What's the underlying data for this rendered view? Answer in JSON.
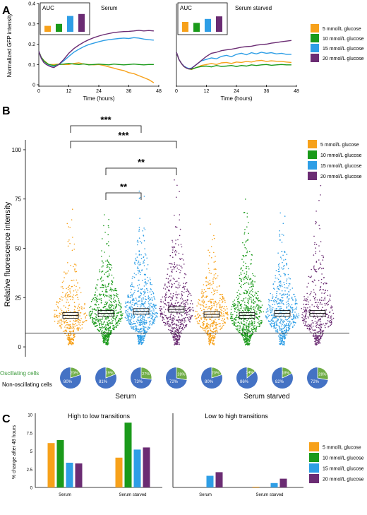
{
  "colors": {
    "glc5": "#F7A11A",
    "glc10": "#1A9A1A",
    "glc15": "#2E9EE6",
    "glc20": "#6B2C73",
    "pie_blue": "#4472C4",
    "pie_green": "#70AD47",
    "oscillating_text": "#3C9A3C"
  },
  "legend": [
    "5 mmol/L glucose",
    "10 mmol/L glucose",
    "15 mmol/L glucose",
    "20 mmol/L glucose"
  ],
  "panel_letters": [
    "A",
    "B",
    "C"
  ],
  "chart_data": [
    {
      "type": "line",
      "panel": "A",
      "title": "Serum",
      "inset_label": "AUC",
      "xlabel": "Time (hours)",
      "ylabel": "Normalized GFP intensity",
      "xlim": [
        0,
        48
      ],
      "ylim": [
        0,
        0.4
      ],
      "xticks": [
        "0",
        "12",
        "24",
        "36",
        "48"
      ],
      "yticks": [
        "0",
        "0.1",
        "0.2",
        "0.3",
        "0.4"
      ],
      "inset_auc": [
        0.3,
        0.4,
        0.8,
        0.9
      ],
      "x": [
        0,
        1,
        2,
        3,
        4,
        5,
        6,
        8,
        10,
        12,
        14,
        16,
        18,
        20,
        22,
        24,
        26,
        28,
        30,
        32,
        34,
        36,
        38,
        40,
        42,
        44,
        46
      ],
      "series": [
        {
          "name": "5 mmol/L glucose",
          "values": [
            0.165,
            0.135,
            0.12,
            0.11,
            0.1,
            0.1,
            0.1,
            0.102,
            0.1,
            0.1,
            0.105,
            0.108,
            0.102,
            0.1,
            0.098,
            0.1,
            0.095,
            0.088,
            0.082,
            0.075,
            0.07,
            0.06,
            0.055,
            0.045,
            0.035,
            0.025,
            0.01
          ]
        },
        {
          "name": "10 mmol/L glucose",
          "values": [
            0.165,
            0.135,
            0.118,
            0.108,
            0.1,
            0.097,
            0.095,
            0.1,
            0.102,
            0.105,
            0.102,
            0.1,
            0.103,
            0.098,
            0.1,
            0.102,
            0.1,
            0.098,
            0.102,
            0.1,
            0.098,
            0.1,
            0.102,
            0.1,
            0.098,
            0.1,
            0.1
          ]
        },
        {
          "name": "15 mmol/L glucose",
          "values": [
            0.165,
            0.13,
            0.11,
            0.1,
            0.095,
            0.09,
            0.088,
            0.1,
            0.118,
            0.14,
            0.16,
            0.175,
            0.188,
            0.198,
            0.205,
            0.212,
            0.218,
            0.222,
            0.225,
            0.228,
            0.23,
            0.228,
            0.232,
            0.23,
            0.225,
            0.222,
            0.22
          ]
        },
        {
          "name": "20 mmol/L glucose",
          "values": [
            0.165,
            0.13,
            0.11,
            0.1,
            0.093,
            0.088,
            0.085,
            0.1,
            0.125,
            0.155,
            0.178,
            0.195,
            0.21,
            0.222,
            0.232,
            0.24,
            0.247,
            0.252,
            0.257,
            0.26,
            0.262,
            0.263,
            0.265,
            0.268,
            0.265,
            0.267,
            0.265
          ]
        }
      ]
    },
    {
      "type": "line",
      "panel": "A",
      "title": "Serum starved",
      "inset_label": "AUC",
      "xlabel": "Time (hours)",
      "xlim": [
        0,
        48
      ],
      "ylim": [
        0,
        0.4
      ],
      "xticks": [
        "0",
        "12",
        "24",
        "36",
        "48"
      ],
      "inset_auc": [
        0.5,
        0.45,
        0.65,
        0.78
      ],
      "x": [
        0,
        1,
        2,
        3,
        4,
        5,
        6,
        8,
        10,
        12,
        14,
        16,
        18,
        20,
        22,
        24,
        26,
        28,
        30,
        32,
        34,
        36,
        38,
        40,
        42,
        44,
        46
      ],
      "series": [
        {
          "name": "5 mmol/L glucose",
          "values": [
            0.16,
            0.125,
            0.105,
            0.09,
            0.082,
            0.078,
            0.075,
            0.085,
            0.095,
            0.1,
            0.105,
            0.1,
            0.108,
            0.11,
            0.105,
            0.112,
            0.11,
            0.115,
            0.112,
            0.118,
            0.12,
            0.115,
            0.118,
            0.116,
            0.115,
            0.112,
            0.11
          ]
        },
        {
          "name": "10 mmol/L glucose",
          "values": [
            0.16,
            0.125,
            0.105,
            0.09,
            0.082,
            0.078,
            0.077,
            0.085,
            0.09,
            0.092,
            0.088,
            0.095,
            0.09,
            0.092,
            0.095,
            0.09,
            0.095,
            0.092,
            0.098,
            0.095,
            0.098,
            0.1,
            0.096,
            0.098,
            0.1,
            0.098,
            0.098
          ]
        },
        {
          "name": "15 mmol/L glucose",
          "values": [
            0.16,
            0.125,
            0.105,
            0.092,
            0.085,
            0.08,
            0.082,
            0.1,
            0.118,
            0.125,
            0.132,
            0.128,
            0.14,
            0.145,
            0.138,
            0.15,
            0.155,
            0.148,
            0.158,
            0.152,
            0.16,
            0.155,
            0.158,
            0.152,
            0.155,
            0.15,
            0.15
          ]
        },
        {
          "name": "20 mmol/L glucose",
          "values": [
            0.16,
            0.125,
            0.105,
            0.09,
            0.082,
            0.078,
            0.08,
            0.1,
            0.12,
            0.14,
            0.155,
            0.16,
            0.168,
            0.172,
            0.175,
            0.18,
            0.185,
            0.188,
            0.19,
            0.195,
            0.198,
            0.2,
            0.205,
            0.208,
            0.212,
            0.215,
            0.218
          ]
        }
      ]
    },
    {
      "type": "scatter",
      "panel": "B",
      "ylabel": "Relative fluorescence intensity",
      "ylim": [
        -5,
        105
      ],
      "yticks": [
        0,
        25,
        50,
        75,
        100
      ],
      "threshold": 7,
      "groups": [
        {
          "condition": "Serum",
          "glucose": "5 mmol/L glucose",
          "median": 16,
          "max": 72,
          "n": 380,
          "oscillating_pct": 20,
          "non_oscillating_pct": 80
        },
        {
          "condition": "Serum",
          "glucose": "10 mmol/L glucose",
          "median": 17,
          "max": 69,
          "n": 620,
          "oscillating_pct": 19,
          "non_oscillating_pct": 81
        },
        {
          "condition": "Serum",
          "glucose": "15 mmol/L glucose",
          "median": 18,
          "max": 80,
          "n": 620,
          "oscillating_pct": 27,
          "non_oscillating_pct": 73
        },
        {
          "condition": "Serum",
          "glucose": "20 mmol/L glucose",
          "median": 19,
          "max": 89,
          "n": 560,
          "oscillating_pct": 28,
          "non_oscillating_pct": 72
        },
        {
          "condition": "Serum starved",
          "glucose": "5 mmol/L glucose",
          "median": 16.5,
          "max": 63,
          "n": 470,
          "oscillating_pct": 20,
          "non_oscillating_pct": 80
        },
        {
          "condition": "Serum starved",
          "glucose": "10 mmol/L glucose",
          "median": 16,
          "max": 79,
          "n": 640,
          "oscillating_pct": 14,
          "non_oscillating_pct": 86
        },
        {
          "condition": "Serum starved",
          "glucose": "15 mmol/L glucose",
          "median": 17,
          "max": 69,
          "n": 530,
          "oscillating_pct": 18,
          "non_oscillating_pct": 82
        },
        {
          "condition": "Serum starved",
          "glucose": "20 mmol/L glucose",
          "median": 17,
          "max": 86,
          "n": 420,
          "oscillating_pct": 28,
          "non_oscillating_pct": 72
        }
      ],
      "significance": [
        {
          "from": 1,
          "to": 3,
          "label": "***"
        },
        {
          "from": 1,
          "to": 4,
          "label": "***"
        },
        {
          "from": 2,
          "to": 4,
          "label": "**"
        },
        {
          "from": 2,
          "to": 3,
          "label": "**"
        }
      ],
      "pie_row_labels": [
        "Oscillating cells",
        "Non-oscillating cells"
      ],
      "group_labels": [
        "Serum",
        "Serum starved"
      ]
    },
    {
      "type": "bar",
      "panel": "C",
      "title": "High to low transitions",
      "ylabel": "% change after 48 hours",
      "ylim": [
        0,
        10
      ],
      "yticks": [
        "0",
        "2.5",
        "5",
        "7.5",
        "10"
      ],
      "categories": [
        "Serum",
        "Serum starved"
      ],
      "series": [
        {
          "name": "5 mmol/L glucose",
          "values": [
            6.1,
            4.1
          ]
        },
        {
          "name": "10 mmol/L glucose",
          "values": [
            6.5,
            8.9
          ]
        },
        {
          "name": "15 mmol/L glucose",
          "values": [
            3.4,
            5.2
          ]
        },
        {
          "name": "20 mmol/L glucose",
          "values": [
            3.3,
            5.5
          ]
        }
      ]
    },
    {
      "type": "bar",
      "panel": "C",
      "title": "Low to high transitions",
      "ylim": [
        0,
        10
      ],
      "categories": [
        "Serum",
        "Serum starved"
      ],
      "series": [
        {
          "name": "5 mmol/L glucose",
          "values": [
            0,
            0.1
          ]
        },
        {
          "name": "10 mmol/L glucose",
          "values": [
            0,
            0
          ]
        },
        {
          "name": "15 mmol/L glucose",
          "values": [
            1.6,
            0.6
          ]
        },
        {
          "name": "20 mmol/L glucose",
          "values": [
            2.1,
            1.2
          ]
        }
      ]
    }
  ]
}
